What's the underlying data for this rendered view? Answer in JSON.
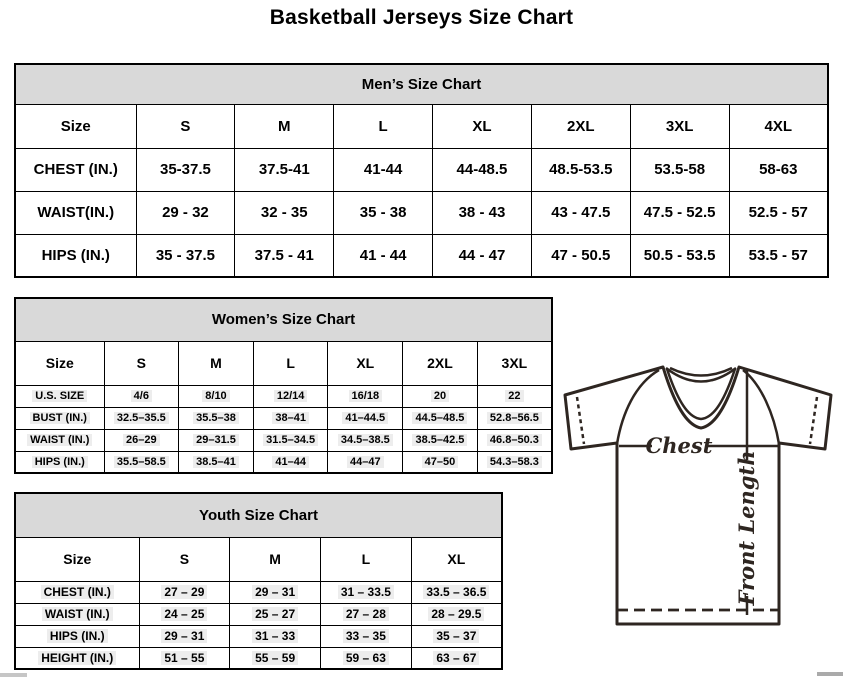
{
  "page_title": "Basketball Jerseys Size Chart",
  "tables": {
    "men": {
      "title": "Men’s Size Chart",
      "columns": [
        "Size",
        "S",
        "M",
        "L",
        "XL",
        "2XL",
        "3XL",
        "4XL"
      ],
      "rows": [
        {
          "label": "CHEST (IN.)",
          "values": [
            "35-37.5",
            "37.5-41",
            "41-44",
            "44-48.5",
            "48.5-53.5",
            "53.5-58",
            "58-63"
          ]
        },
        {
          "label": "WAIST(IN.)",
          "values": [
            "29 - 32",
            "32 - 35",
            "35 - 38",
            "38 - 43",
            "43 - 47.5",
            "47.5 - 52.5",
            "52.5 - 57"
          ]
        },
        {
          "label": "HIPS (IN.)",
          "values": [
            "35 - 37.5",
            "37.5 - 41",
            "41 - 44",
            "44 - 47",
            "47 - 50.5",
            "50.5 - 53.5",
            "53.5 - 57"
          ]
        }
      ]
    },
    "women": {
      "title": "Women’s Size Chart",
      "columns": [
        "Size",
        "S",
        "M",
        "L",
        "XL",
        "2XL",
        "3XL"
      ],
      "rows": [
        {
          "label": "U.S. SIZE",
          "values": [
            "4/6",
            "8/10",
            "12/14",
            "16/18",
            "20",
            "22"
          ]
        },
        {
          "label": "BUST (IN.)",
          "values": [
            "32.5–35.5",
            "35.5–38",
            "38–41",
            "41–44.5",
            "44.5–48.5",
            "52.8–56.5"
          ]
        },
        {
          "label": "WAIST (IN.)",
          "values": [
            "26–29",
            "29–31.5",
            "31.5–34.5",
            "34.5–38.5",
            "38.5–42.5",
            "46.8–50.3"
          ]
        },
        {
          "label": "HIPS (IN.)",
          "values": [
            "35.5–58.5",
            "38.5–41",
            "41–44",
            "44–47",
            "47–50",
            "54.3–58.3"
          ]
        }
      ]
    },
    "youth": {
      "title": "Youth Size Chart",
      "columns": [
        "Size",
        "S",
        "M",
        "L",
        "XL"
      ],
      "rows": [
        {
          "label": "CHEST (IN.)",
          "values": [
            "27 – 29",
            "29 – 31",
            "31 – 33.5",
            "33.5 – 36.5"
          ]
        },
        {
          "label": "WAIST (IN.)",
          "values": [
            "24 – 25",
            "25 – 27",
            "27 – 28",
            "28 – 29.5"
          ]
        },
        {
          "label": "HIPS (IN.)",
          "values": [
            "29 – 31",
            "31 – 33",
            "33 – 35",
            "35 – 37"
          ]
        },
        {
          "label": "HEIGHT (IN.)",
          "values": [
            "51 – 55",
            "55 – 59",
            "59 – 63",
            "63 – 67"
          ]
        }
      ]
    }
  },
  "diagram": {
    "chest_label": "Chest",
    "front_length_label": "Front Length"
  },
  "colors": {
    "band_gray": "#d9d9d9",
    "line_dark": "#2e2621",
    "token_highlight": "#ededed"
  }
}
